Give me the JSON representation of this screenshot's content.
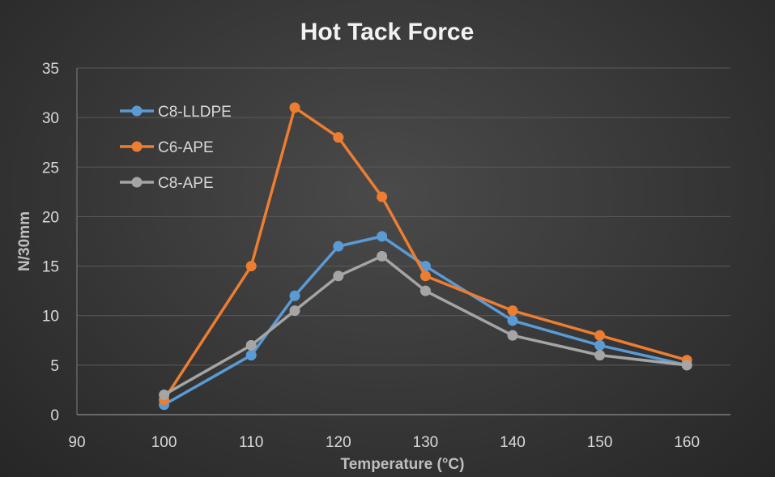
{
  "chart_data": {
    "type": "line",
    "title": "Hot Tack Force",
    "xlabel": "Temperature (°C)",
    "ylabel": "N/30mm",
    "xlim": [
      90,
      165
    ],
    "ylim": [
      0,
      35
    ],
    "xticks": [
      90,
      100,
      110,
      120,
      130,
      140,
      150,
      160
    ],
    "yticks": [
      0,
      5,
      10,
      15,
      20,
      25,
      30,
      35
    ],
    "grid": true,
    "legend_position": "top-left",
    "x": [
      100,
      110,
      115,
      120,
      125,
      130,
      140,
      150,
      160
    ],
    "series": [
      {
        "name": "C8-LLDPE",
        "color": "#5b9bd5",
        "values": [
          1,
          6,
          12,
          17,
          18,
          15,
          9.5,
          7,
          5
        ]
      },
      {
        "name": "C6-APE",
        "color": "#ed7d31",
        "values": [
          1.5,
          15,
          31,
          28,
          22,
          14,
          10.5,
          8,
          5.5
        ]
      },
      {
        "name": "C8-APE",
        "color": "#a5a5a5",
        "values": [
          2,
          7,
          10.5,
          14,
          16,
          12.5,
          8,
          6,
          5
        ]
      }
    ]
  }
}
